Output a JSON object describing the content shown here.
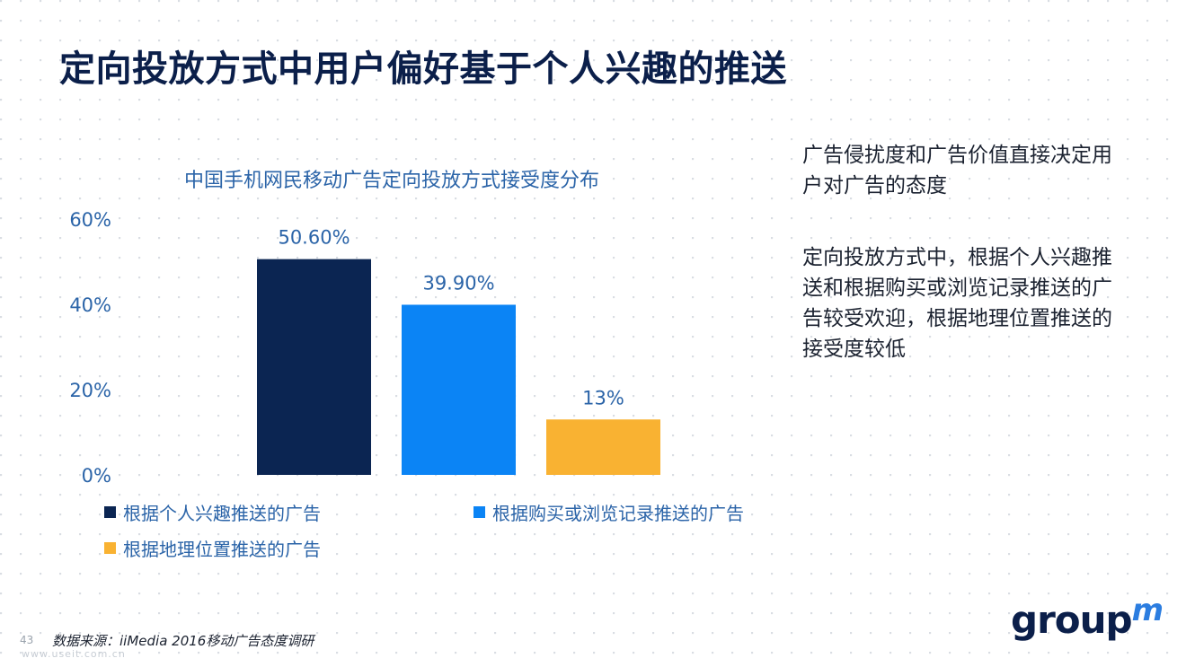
{
  "page": {
    "title": "定向投放方式中用户偏好基于个人兴趣的推送",
    "page_number": "43",
    "source": "数据来源：iiMedia 2016移动广告态度调研",
    "watermark": "www.useit.com.cn",
    "logo": {
      "text": "group",
      "mark": "m"
    }
  },
  "side_text": {
    "p1": "广告侵扰度和广告价值直接决定用户对广告的态度",
    "p2": "定向投放方式中，根据个人兴趣推送和根据购买或浏览记录推送的广告较受欢迎，根据地理位置推送的接受度较低"
  },
  "chart_data": {
    "type": "bar",
    "title": "中国手机网民移动广告定向投放方式接受度分布",
    "categories": [
      "根据个人兴趣推送的广告",
      "根据购买或浏览记录推送的广告",
      "根据地理位置推送的广告"
    ],
    "values": [
      50.6,
      39.9,
      13
    ],
    "value_labels": [
      "50.60%",
      "39.90%",
      "13%"
    ],
    "colors": [
      "#0b2552",
      "#0b84f5",
      "#f9b232"
    ],
    "ylim": [
      0,
      60
    ],
    "yticks": [
      0,
      20,
      40,
      60
    ],
    "ytick_labels": [
      "0%",
      "20%",
      "40%",
      "60%"
    ],
    "legend": [
      {
        "label": "根据个人兴趣推送的广告",
        "color": "#0b2552"
      },
      {
        "label": "根据购买或浏览记录推送的广告",
        "color": "#0b84f5"
      },
      {
        "label": "根据地理位置推送的广告",
        "color": "#f9b232"
      }
    ],
    "legend_position": "bottom",
    "grid": false
  }
}
